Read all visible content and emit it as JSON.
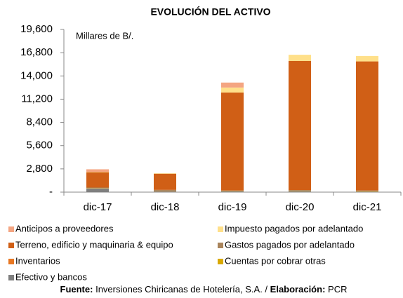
{
  "chart_data": {
    "type": "stacked_bar",
    "title": "EVOLUCIÓN DEL ACTIVO",
    "unit_label": "Millares de B/.",
    "categories": [
      "dic-17",
      "dic-18",
      "dic-19",
      "dic-20",
      "dic-21"
    ],
    "series": [
      {
        "name": "Anticipos a proveedores",
        "color": "#f4a582",
        "values": [
          300,
          0,
          600,
          0,
          0
        ]
      },
      {
        "name": "Impuesto pagados por adelantado",
        "color": "#ffe08a",
        "values": [
          50,
          50,
          600,
          750,
          650
        ]
      },
      {
        "name": "Terreno, edificio y maquinaria & equipo",
        "color": "#d05f16",
        "values": [
          1850,
          1950,
          11800,
          15550,
          15550
        ]
      },
      {
        "name": "Gastos pagados por adelantado",
        "color": "#a9845c",
        "values": [
          50,
          150,
          50,
          100,
          100
        ]
      },
      {
        "name": "Inventarios",
        "color": "#e87722",
        "values": [
          20,
          20,
          20,
          20,
          20
        ]
      },
      {
        "name": "Cuentas por cobrar otras",
        "color": "#d9a900",
        "values": [
          30,
          20,
          30,
          30,
          30
        ]
      },
      {
        "name": "Efectivo y bancos",
        "color": "#7f7f7f",
        "values": [
          450,
          80,
          100,
          100,
          50
        ]
      }
    ],
    "ylim": [
      0,
      19600
    ],
    "yticks": [
      {
        "value": 0,
        "label": "-"
      },
      {
        "value": 2800,
        "label": "2,800"
      },
      {
        "value": 5600,
        "label": "5,600"
      },
      {
        "value": 8400,
        "label": "8,400"
      },
      {
        "value": 11200,
        "label": "11,200"
      },
      {
        "value": 14000,
        "label": "14,000"
      },
      {
        "value": 16800,
        "label": "16,800"
      },
      {
        "value": 19600,
        "label": "19,600"
      }
    ],
    "grid": false,
    "source_label": "Fuente:",
    "source_text": "Inversiones Chiricanas de Hotelería, S.A. /",
    "credit_label": "Elaboración:",
    "credit_text": "PCR"
  }
}
